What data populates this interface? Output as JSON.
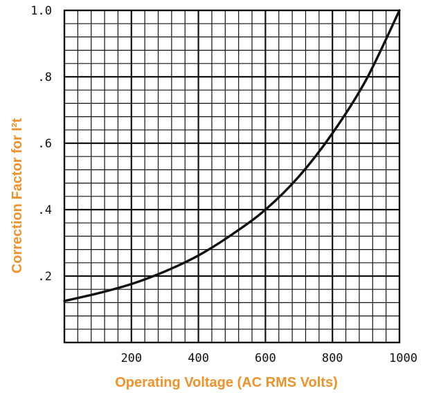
{
  "colors": {
    "axis_title": "#f0922a",
    "grid": "#111111",
    "curve": "#111111"
  },
  "chart_data": {
    "type": "line",
    "title": "",
    "xlabel": "Operating Voltage (AC RMS Volts)",
    "ylabel": "Correction Factor for I²t",
    "xlim": [
      0,
      1000
    ],
    "ylim": [
      0,
      1.0
    ],
    "x_ticks": [
      200,
      400,
      600,
      800,
      1000
    ],
    "x_tick_labels": [
      "200",
      "400",
      "600",
      "800",
      "1000"
    ],
    "y_ticks": [
      0.2,
      0.4,
      0.6,
      0.8,
      1.0
    ],
    "y_tick_labels": [
      ".2",
      ".4",
      ".6",
      ".8",
      "1.0"
    ],
    "grid": true,
    "minor_grid": {
      "x_step": 40,
      "y_step": 0.04
    },
    "series": [
      {
        "x": [
          0,
          100,
          200,
          300,
          400,
          500,
          600,
          700,
          800,
          900,
          1000
        ],
        "y": [
          0.125,
          0.148,
          0.176,
          0.214,
          0.262,
          0.325,
          0.4,
          0.5,
          0.63,
          0.79,
          1.0
        ]
      }
    ]
  }
}
